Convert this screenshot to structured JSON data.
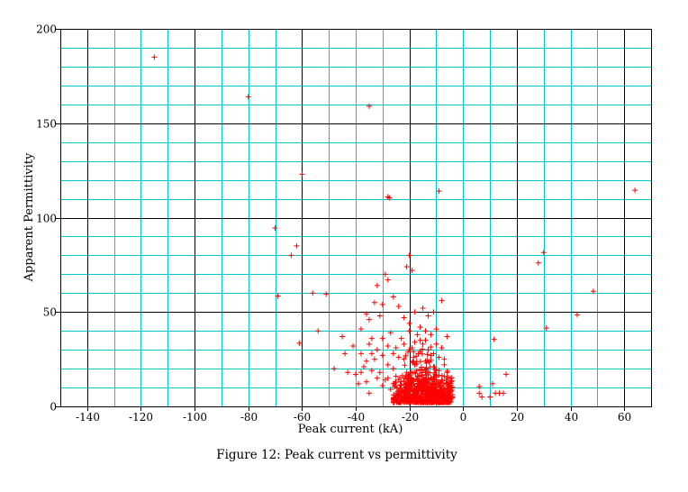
{
  "caption": "Figure 12: Peak current vs permittivity",
  "colors": {
    "minor_grid": "#00c8c8",
    "major_grid": "#000000",
    "marker": "#ff0000",
    "text": "#000000"
  },
  "chart_data": {
    "type": "scatter",
    "title": "",
    "xlabel": "Peak current (kA)",
    "ylabel": "Apparent Permittivity",
    "xlim": [
      -150,
      70
    ],
    "ylim": [
      0,
      200
    ],
    "x_ticks": [
      -140,
      -120,
      -100,
      -80,
      -60,
      -40,
      -20,
      0,
      20,
      40,
      60
    ],
    "x_tick_labels": [
      "-140",
      "-120",
      "-100",
      "-80",
      "-60",
      "-40",
      "-20",
      "0",
      "20",
      "40",
      "60"
    ],
    "y_ticks": [
      0,
      50,
      100,
      150,
      200
    ],
    "y_tick_labels": [
      "0",
      "50",
      "100",
      "150",
      "200"
    ],
    "x_major_step": 40,
    "x_minor_step": 10,
    "y_major_step": 50,
    "y_minor_step": 10,
    "grid": true,
    "legend": "none",
    "marker": "+",
    "series": [
      {
        "points": [
          [
            -115,
            185
          ],
          [
            -80,
            164
          ],
          [
            -35,
            159
          ],
          [
            -60,
            123
          ],
          [
            -28,
            111
          ],
          [
            -27.5,
            110.5
          ],
          [
            -9,
            114
          ],
          [
            -70,
            94.5
          ],
          [
            -62,
            85
          ],
          [
            -64,
            80
          ],
          [
            -69,
            58.5
          ],
          [
            -56,
            60
          ],
          [
            -51,
            59.5
          ],
          [
            -61,
            33.5
          ],
          [
            -54,
            40
          ],
          [
            -45,
            37
          ],
          [
            -48,
            20
          ],
          [
            -43,
            18
          ],
          [
            -44,
            28
          ],
          [
            -39,
            12
          ],
          [
            -41,
            32
          ],
          [
            -20,
            80
          ],
          [
            -21,
            74
          ],
          [
            -19,
            72
          ],
          [
            -32,
            64
          ],
          [
            -29,
            70
          ],
          [
            -30,
            54
          ],
          [
            -28,
            67
          ],
          [
            -26,
            58
          ],
          [
            -33,
            55
          ],
          [
            -31,
            48
          ],
          [
            -24,
            53
          ],
          [
            -35,
            46
          ],
          [
            -36,
            49
          ],
          [
            -34,
            36
          ],
          [
            -38,
            41
          ],
          [
            -22,
            47
          ],
          [
            -20,
            44
          ],
          [
            -18,
            50
          ],
          [
            -15,
            52
          ],
          [
            -13,
            48
          ],
          [
            -11,
            50
          ],
          [
            -8,
            56
          ],
          [
            -6,
            37
          ],
          [
            -7,
            25
          ],
          [
            -10,
            41
          ],
          [
            -12,
            38
          ],
          [
            -16,
            42
          ],
          [
            -14,
            35
          ],
          [
            -23,
            36
          ],
          [
            -25,
            31
          ],
          [
            -27,
            39
          ],
          [
            -30,
            27
          ],
          [
            -33,
            25
          ],
          [
            -35,
            33
          ],
          [
            -37,
            21
          ],
          [
            -40,
            17
          ],
          [
            -31,
            18
          ],
          [
            -28,
            15
          ],
          [
            -26,
            20
          ],
          [
            -24,
            14
          ],
          [
            -22,
            25
          ],
          [
            -21,
            18
          ],
          [
            -19,
            31
          ],
          [
            -18,
            22
          ],
          [
            -17,
            16
          ],
          [
            -16,
            29
          ],
          [
            -15,
            12
          ],
          [
            -14,
            24
          ],
          [
            -13,
            18
          ],
          [
            -12,
            10
          ],
          [
            -11,
            21
          ],
          [
            -10,
            14
          ],
          [
            -9,
            19
          ],
          [
            -8,
            9
          ],
          [
            -7,
            16
          ],
          [
            -6,
            7
          ],
          [
            -5,
            11
          ],
          [
            -4,
            5
          ],
          [
            -5,
            3
          ],
          [
            -6,
            12
          ],
          [
            -7,
            5
          ],
          [
            -8,
            14
          ],
          [
            -9,
            7
          ],
          [
            -10,
            4
          ],
          [
            -11,
            9
          ],
          [
            -12,
            15
          ],
          [
            -13,
            6
          ],
          [
            -14,
            11
          ],
          [
            -15,
            8
          ],
          [
            -16,
            4
          ],
          [
            -17,
            10
          ],
          [
            -18,
            7
          ],
          [
            -19,
            13
          ],
          [
            -20,
            9
          ],
          [
            -21,
            12
          ],
          [
            -22,
            5
          ],
          [
            -23,
            11
          ],
          [
            -24,
            8
          ],
          [
            -25,
            16
          ],
          [
            -26,
            12
          ],
          [
            -27,
            9
          ],
          [
            -28,
            22
          ],
          [
            -29,
            14
          ],
          [
            -30,
            11
          ],
          [
            -32,
            15
          ],
          [
            -34,
            19
          ],
          [
            -36,
            13
          ],
          [
            -38,
            28
          ],
          [
            -35,
            7
          ],
          [
            -20,
            40
          ],
          [
            -17,
            38
          ],
          [
            -15,
            33
          ],
          [
            -13,
            30
          ],
          [
            -11,
            28
          ],
          [
            -9,
            26
          ],
          [
            -7,
            22
          ],
          [
            -6,
            18
          ],
          [
            -8,
            31
          ],
          [
            -10,
            33
          ],
          [
            -12,
            27
          ],
          [
            -14,
            40
          ],
          [
            -16,
            35
          ],
          [
            -18,
            34
          ],
          [
            -20,
            30
          ],
          [
            -22,
            33
          ],
          [
            -24,
            26
          ],
          [
            -26,
            28
          ],
          [
            -28,
            32
          ],
          [
            -30,
            36
          ],
          [
            -32,
            30
          ],
          [
            -34,
            28
          ],
          [
            -36,
            24
          ],
          [
            -38,
            18
          ],
          [
            6,
            10.5
          ],
          [
            6,
            7
          ],
          [
            7,
            5
          ],
          [
            10,
            5
          ],
          [
            11,
            12
          ],
          [
            12,
            7
          ],
          [
            13.5,
            7
          ],
          [
            15,
            7
          ],
          [
            16,
            17
          ],
          [
            11.5,
            35.5
          ],
          [
            28,
            76
          ],
          [
            30,
            81.5
          ],
          [
            31,
            41.5
          ],
          [
            42.5,
            48.5
          ],
          [
            48.5,
            61
          ],
          [
            64,
            114.5
          ]
        ]
      }
    ],
    "dense_clusters": [
      {
        "x_range": [
          -26,
          -4
        ],
        "y_range": [
          2,
          20
        ],
        "count": 460
      },
      {
        "x_range": [
          -22,
          -10
        ],
        "y_range": [
          8,
          34
        ],
        "count": 150
      },
      {
        "x_range": [
          -18,
          -6
        ],
        "y_range": [
          2,
          10
        ],
        "count": 90
      }
    ]
  }
}
